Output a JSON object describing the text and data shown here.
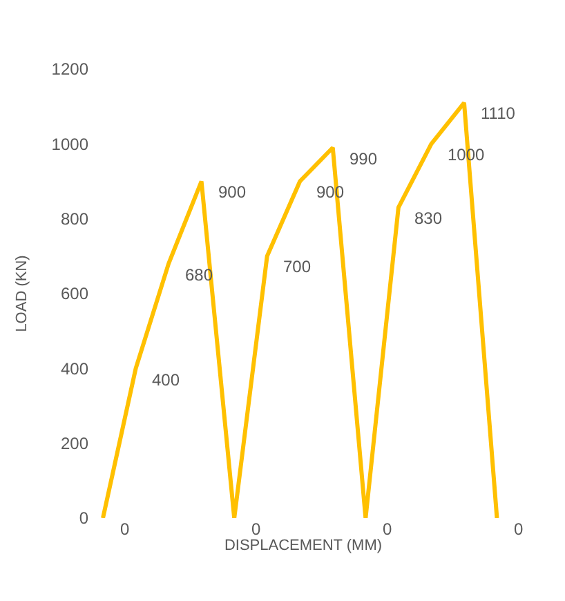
{
  "chart_data": {
    "type": "line",
    "xlabel": "DISPLACEMENT (MM)",
    "ylabel": "LOAD (KN)",
    "categories": [
      null,
      null,
      null,
      null,
      null,
      null,
      null,
      null,
      null,
      null,
      null,
      null,
      null
    ],
    "series": [
      {
        "color": "#ffc000",
        "values": [
          0,
          400,
          680,
          900,
          0,
          700,
          900,
          990,
          0,
          830,
          1000,
          1110,
          0
        ]
      }
    ],
    "ylim": [
      0,
      1200
    ],
    "yticks": [
      0,
      200,
      400,
      600,
      800,
      1000,
      1200
    ],
    "legend": false,
    "data_labels": true,
    "marker": "none",
    "line_style": "solid"
  }
}
